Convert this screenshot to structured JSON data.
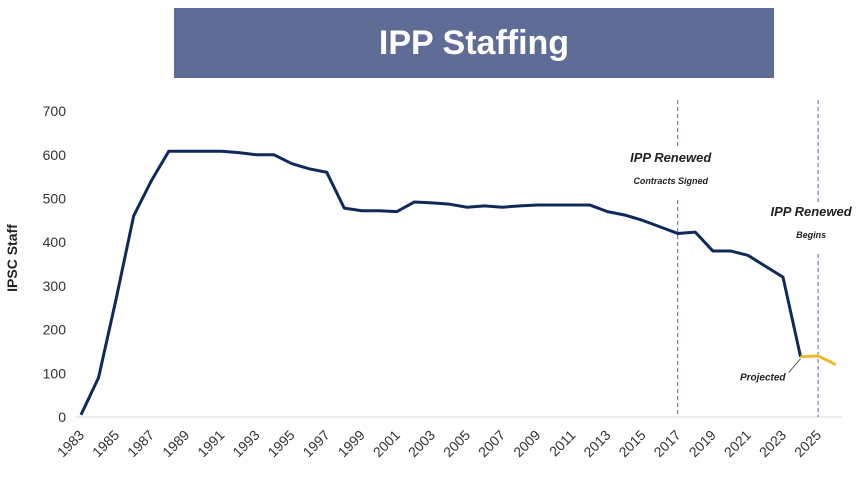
{
  "title": "IPP Staffing",
  "chart_data": {
    "type": "line",
    "title": "IPP Staffing",
    "xlabel": "",
    "ylabel": "IPSC Staff",
    "ylim": [
      0,
      700
    ],
    "yticks": [
      0,
      100,
      200,
      300,
      400,
      500,
      600,
      700
    ],
    "xticks": [
      "1983",
      "1985",
      "1987",
      "1989",
      "1991",
      "1993",
      "1995",
      "1997",
      "1999",
      "2001",
      "2003",
      "2005",
      "2007",
      "2009",
      "2011",
      "2013",
      "2015",
      "2017",
      "2019",
      "2021",
      "2023",
      "2025"
    ],
    "xlim": [
      1983,
      2026
    ],
    "grid": false,
    "series": [
      {
        "color": "#0d2a5a",
        "x": [
          1983,
          1984,
          1985,
          1986,
          1987,
          1988,
          1989,
          1990,
          1991,
          1992,
          1993,
          1994,
          1995,
          1996,
          1997,
          1998,
          1999,
          2000,
          2001,
          2002,
          2003,
          2004,
          2005,
          2006,
          2007,
          2008,
          2009,
          2010,
          2011,
          2012,
          2013,
          2014,
          2015,
          2016,
          2017,
          2018,
          2019,
          2020,
          2021,
          2022,
          2023,
          2024
        ],
        "values": [
          5,
          90,
          270,
          460,
          540,
          608,
          608,
          608,
          608,
          605,
          600,
          600,
          580,
          568,
          560,
          478,
          472,
          472,
          470,
          492,
          490,
          487,
          480,
          483,
          480,
          483,
          485,
          485,
          485,
          485,
          470,
          462,
          450,
          435,
          420,
          423,
          380,
          380,
          370,
          345,
          320,
          138
        ]
      },
      {
        "color": "#f5b72a",
        "x": [
          2024,
          2025,
          2026
        ],
        "values": [
          138,
          140,
          120
        ]
      }
    ],
    "annotations": [
      {
        "x": 2017,
        "title": "IPP Renewed",
        "subtitle": "Contracts Signed"
      },
      {
        "x": 2025,
        "title": "IPP Renewed",
        "subtitle": "Begins"
      }
    ],
    "callout": "Projected"
  }
}
